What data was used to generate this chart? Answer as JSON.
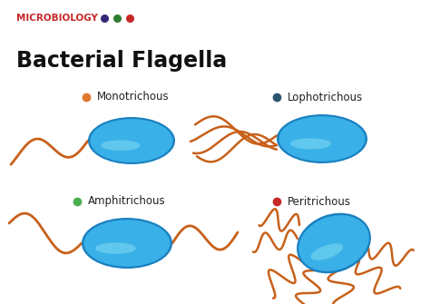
{
  "title": "Bacterial Flagella",
  "subtitle": "MICROBIOLOGY",
  "subtitle_dots": [
    "#352a7a",
    "#2e7d32",
    "#c62828"
  ],
  "subtitle_color": "#c62828",
  "title_color": "#111111",
  "bg_color": "#ffffff",
  "body_color_main": "#3ab0e8",
  "body_color_light": "#6dcff0",
  "body_color_dark": "#1a80c0",
  "flagella_color": "#c8601a",
  "labels": [
    "Monotrichous",
    "Lophotrichous",
    "Amphitrichous",
    "Peritrichous"
  ],
  "label_dots": [
    "#e07830",
    "#2a5570",
    "#4caf50",
    "#c62828"
  ],
  "label_fontsize": 8.5,
  "title_fontsize": 17,
  "subtitle_fontsize": 7.5
}
